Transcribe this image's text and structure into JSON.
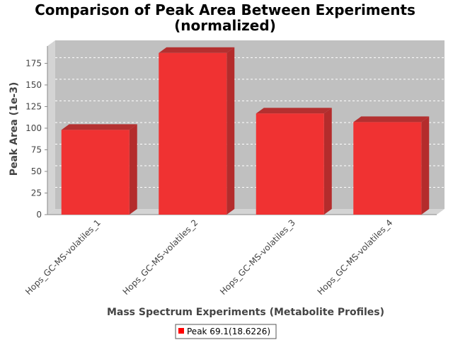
{
  "chart_data": {
    "type": "bar",
    "title_lines": [
      "Comparison of Peak Area Between Experiments",
      "(normalized)"
    ],
    "xlabel": "Mass Spectrum Experiments (Metabolite Profiles)",
    "ylabel": "Peak Area (1e-3)",
    "categories": [
      "Hops_GC-MS-volatiles_1",
      "Hops_GC-MS-volatiles_2",
      "Hops_GC-MS-volatiles_3",
      "Hops_GC-MS-volatiles_4"
    ],
    "series": [
      {
        "name": "Peak 69.1(18.6226)",
        "values": [
          98,
          187,
          117,
          107
        ]
      }
    ],
    "yticks": [
      0,
      25,
      50,
      75,
      100,
      125,
      150,
      175
    ],
    "ylim": [
      0,
      195
    ],
    "grid": true,
    "legend_position": "bottom",
    "colors": {
      "bar_front": "#f03232",
      "bar_top": "#b43030",
      "bar_side": "#b42c2c",
      "plot_back": "#c0c0c0",
      "wall": "#d4d4d4",
      "legend_swatch": "#ff0000"
    }
  }
}
